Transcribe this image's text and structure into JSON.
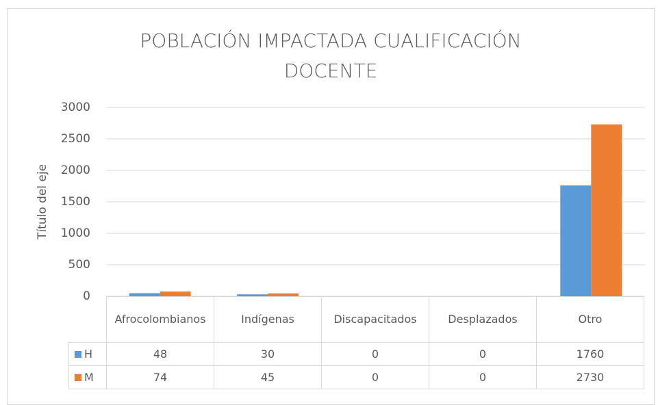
{
  "chart_data": {
    "type": "bar",
    "title": "POBLACIÓN IMPACTADA CUALIFICACIÓN DOCENTE",
    "y_label": "Título del eje",
    "categories": [
      "Afrocolombianos",
      "Indígenas",
      "Discapacitados",
      "Desplazados",
      "Otro"
    ],
    "series": [
      {
        "name": "H",
        "color": "#5b9bd5",
        "values": [
          48,
          30,
          0,
          0,
          1760
        ]
      },
      {
        "name": "M",
        "color": "#ed7d31",
        "values": [
          74,
          45,
          0,
          0,
          2730
        ]
      }
    ],
    "ylim": [
      0,
      3000
    ],
    "yticks": [
      0,
      500,
      1000,
      1500,
      2000,
      2500,
      3000
    ],
    "grid": true
  }
}
